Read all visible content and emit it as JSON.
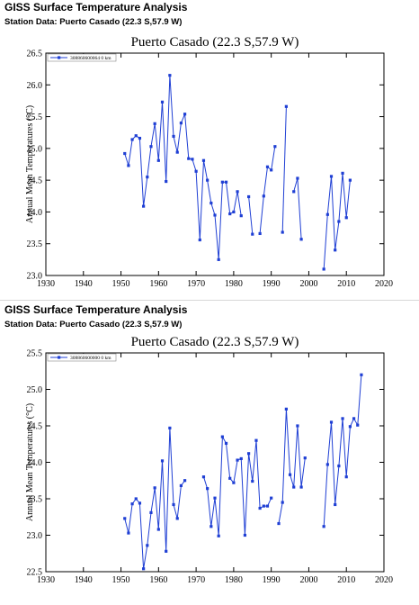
{
  "app": {
    "header_title": "GISS Surface Temperature Analysis",
    "station_line": "Station Data: Puerto Casado (22.3 S,57.9 W)"
  },
  "colors": {
    "series": "#1f3fd4",
    "axis": "#000000"
  },
  "chart_data": [
    {
      "type": "line",
      "title": "Puerto Casado (22.3 S,57.9 W)",
      "xlabel": "",
      "ylabel": "Annual Mean Temperatures (°C)",
      "xlim": [
        1930,
        2020
      ],
      "ylim": [
        23.0,
        26.5
      ],
      "xticks": [
        1930,
        1940,
        1950,
        1960,
        1970,
        1980,
        1990,
        2000,
        2010,
        2020
      ],
      "yticks": [
        23.0,
        23.5,
        24.0,
        24.5,
        25.0,
        25.5,
        26.0,
        26.5
      ],
      "ytick_labels": [
        "23.0",
        "23.5",
        "24.0",
        "24.5",
        "25.0",
        "25.5",
        "26.0",
        "26.5"
      ],
      "legend": "top-left",
      "series": [
        {
          "name": "308860600064  0 km",
          "segments": [
            [
              [
                1951,
                24.92
              ],
              [
                1952,
                24.73
              ],
              [
                1953,
                25.14
              ],
              [
                1954,
                25.2
              ],
              [
                1955,
                25.16
              ],
              [
                1956,
                24.09
              ],
              [
                1957,
                24.55
              ],
              [
                1958,
                25.03
              ],
              [
                1959,
                25.39
              ],
              [
                1960,
                24.81
              ],
              [
                1961,
                25.73
              ],
              [
                1962,
                24.48
              ],
              [
                1963,
                26.15
              ],
              [
                1964,
                25.19
              ],
              [
                1965,
                24.94
              ],
              [
                1966,
                25.4
              ],
              [
                1967,
                25.54
              ],
              [
                1968,
                24.84
              ],
              [
                1969,
                24.83
              ],
              [
                1970,
                24.64
              ],
              [
                1971,
                23.56
              ],
              [
                1972,
                24.81
              ],
              [
                1973,
                24.5
              ],
              [
                1974,
                24.14
              ],
              [
                1975,
                23.95
              ],
              [
                1976,
                23.25
              ],
              [
                1977,
                24.47
              ],
              [
                1978,
                24.47
              ],
              [
                1979,
                23.97
              ],
              [
                1980,
                24.0
              ],
              [
                1981,
                24.32
              ],
              [
                1982,
                23.94
              ]
            ],
            [
              [
                1984,
                24.24
              ],
              [
                1985,
                23.65
              ]
            ],
            [
              [
                1987,
                23.66
              ],
              [
                1988,
                24.25
              ],
              [
                1989,
                24.71
              ],
              [
                1990,
                24.66
              ],
              [
                1991,
                25.03
              ]
            ],
            [
              [
                1993,
                23.68
              ],
              [
                1994,
                25.66
              ]
            ],
            [
              [
                1996,
                24.32
              ],
              [
                1997,
                24.53
              ],
              [
                1998,
                23.57
              ]
            ],
            [
              [
                2004,
                23.1
              ],
              [
                2005,
                23.96
              ],
              [
                2006,
                24.56
              ],
              [
                2007,
                23.4
              ],
              [
                2008,
                23.85
              ],
              [
                2009,
                24.61
              ],
              [
                2010,
                23.91
              ],
              [
                2011,
                24.5
              ]
            ]
          ]
        }
      ]
    },
    {
      "type": "line",
      "title": "Puerto Casado (22.3 S,57.9 W)",
      "xlabel": "",
      "ylabel": "Annual Mean Temperatures (°C)",
      "xlim": [
        1930,
        2020
      ],
      "ylim": [
        22.5,
        25.5
      ],
      "xticks": [
        1930,
        1940,
        1950,
        1960,
        1970,
        1980,
        1990,
        2000,
        2010,
        2020
      ],
      "yticks": [
        22.5,
        23.0,
        23.5,
        24.0,
        24.5,
        25.0,
        25.5
      ],
      "ytick_labels": [
        "22.5",
        "23.0",
        "23.5",
        "24.0",
        "24.5",
        "25.0",
        "25.5"
      ],
      "legend": "top-left",
      "series": [
        {
          "name": "308860600000  0 km",
          "segments": [
            [
              [
                1951,
                23.23
              ],
              [
                1952,
                23.03
              ],
              [
                1953,
                23.43
              ],
              [
                1954,
                23.5
              ],
              [
                1955,
                23.44
              ],
              [
                1956,
                22.54
              ],
              [
                1957,
                22.86
              ],
              [
                1958,
                23.31
              ],
              [
                1959,
                23.65
              ],
              [
                1960,
                23.08
              ],
              [
                1961,
                24.02
              ],
              [
                1962,
                22.78
              ],
              [
                1963,
                24.47
              ],
              [
                1964,
                23.42
              ],
              [
                1965,
                23.23
              ],
              [
                1966,
                23.68
              ],
              [
                1967,
                23.75
              ]
            ],
            [
              [
                1972,
                23.8
              ],
              [
                1973,
                23.64
              ],
              [
                1974,
                23.12
              ],
              [
                1975,
                23.51
              ],
              [
                1976,
                22.99
              ],
              [
                1977,
                24.35
              ],
              [
                1978,
                24.26
              ],
              [
                1979,
                23.78
              ],
              [
                1980,
                23.72
              ],
              [
                1981,
                24.03
              ],
              [
                1982,
                24.05
              ],
              [
                1983,
                23.0
              ],
              [
                1984,
                24.12
              ],
              [
                1985,
                23.74
              ],
              [
                1986,
                24.3
              ],
              [
                1987,
                23.37
              ],
              [
                1988,
                23.4
              ],
              [
                1989,
                23.4
              ],
              [
                1990,
                23.51
              ]
            ],
            [
              [
                1992,
                23.16
              ],
              [
                1993,
                23.45
              ],
              [
                1994,
                24.73
              ],
              [
                1995,
                23.83
              ],
              [
                1996,
                23.66
              ],
              [
                1997,
                24.5
              ],
              [
                1998,
                23.66
              ],
              [
                1999,
                24.06
              ]
            ],
            [
              [
                2004,
                23.12
              ],
              [
                2005,
                23.97
              ],
              [
                2006,
                24.55
              ],
              [
                2007,
                23.42
              ],
              [
                2008,
                23.95
              ],
              [
                2009,
                24.6
              ],
              [
                2010,
                23.8
              ],
              [
                2011,
                24.49
              ],
              [
                2012,
                24.6
              ],
              [
                2013,
                24.51
              ],
              [
                2014,
                25.2
              ]
            ]
          ]
        }
      ]
    }
  ]
}
